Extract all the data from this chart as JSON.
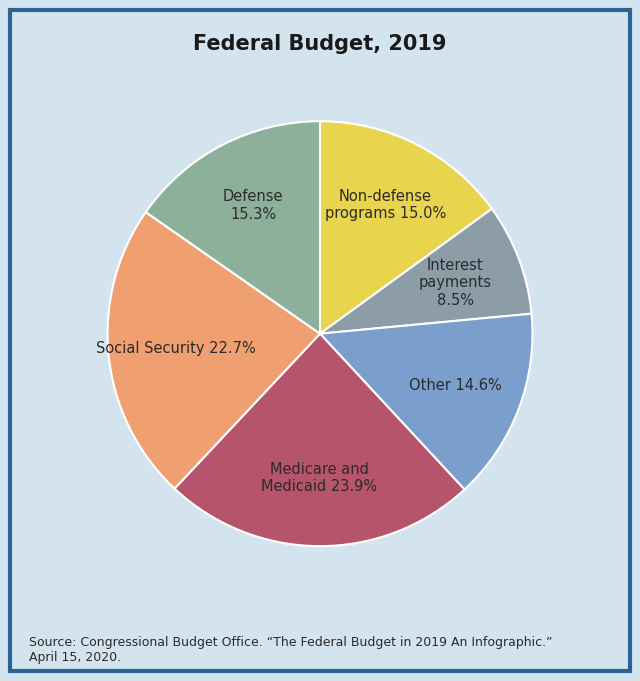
{
  "title": "Federal Budget, 2019",
  "title_fontsize": 15,
  "labels": [
    "Non-defense\nprograms 15.0%",
    "Interest\npayments\n8.5%",
    "Other 14.6%",
    "Medicare and\nMedicaid 23.9%",
    "Social Security 22.7%",
    "Defense\n15.3%"
  ],
  "values": [
    15.0,
    8.5,
    14.6,
    23.9,
    22.7,
    15.3
  ],
  "colors": [
    "#e8d44d",
    "#8c9da8",
    "#7b9fcc",
    "#b5546a",
    "#f0a070",
    "#8db09a"
  ],
  "startangle": 90,
  "background_color": "#d4e4ee",
  "border_color": "#2a6496",
  "text_color": "#2b2b2b",
  "source_text": "Source: Congressional Budget Office. “The Federal Budget in 2019 An Infographic.”\nApril 15, 2020.",
  "source_fontsize": 9,
  "label_fontsize": 10.5,
  "label_distance": [
    0.68,
    0.72,
    0.72,
    0.68,
    0.68,
    0.68
  ]
}
